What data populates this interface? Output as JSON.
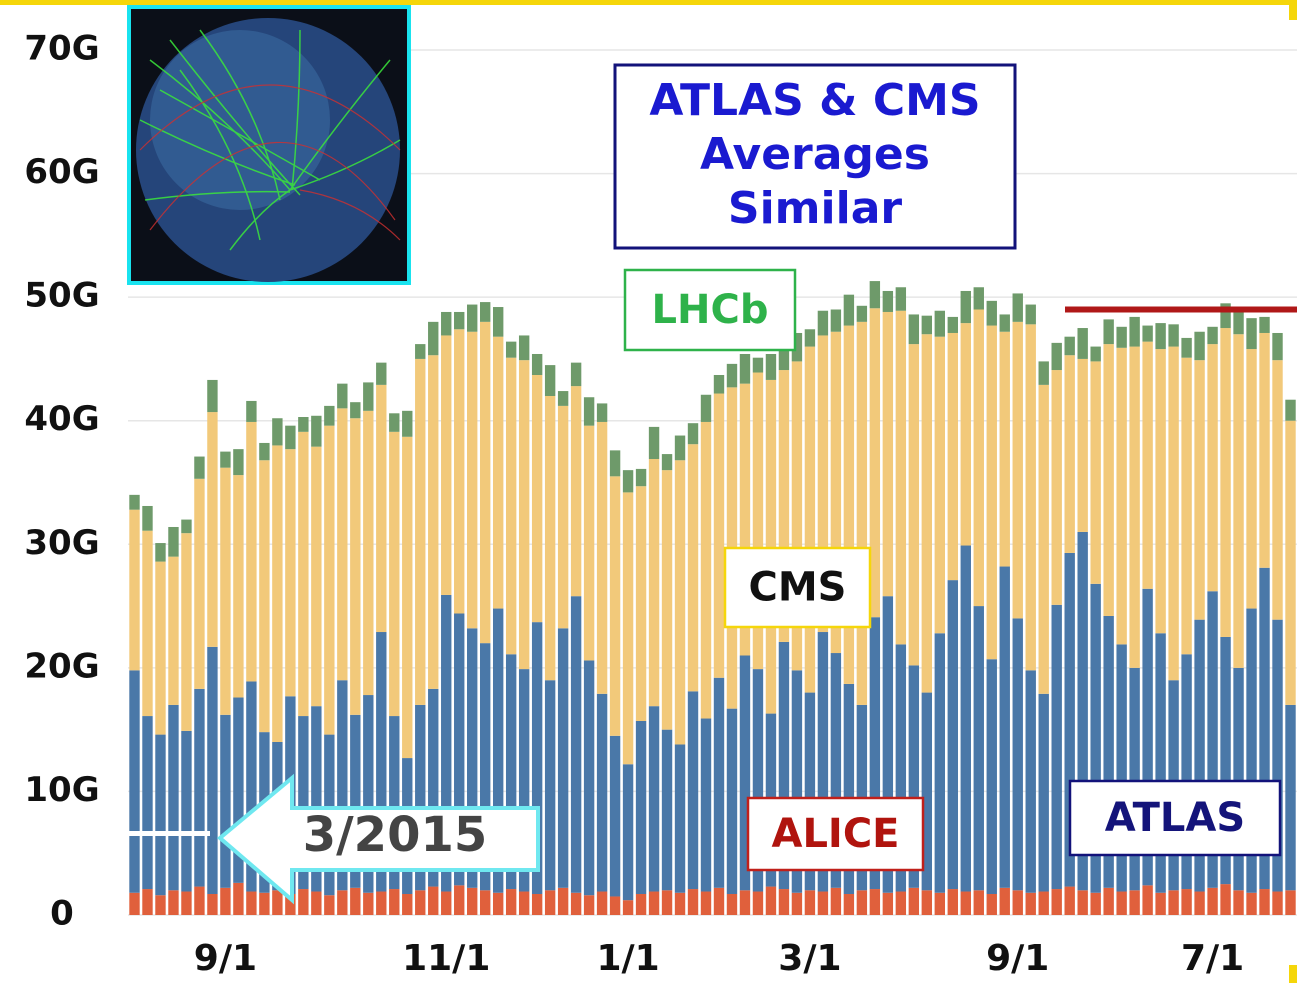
{
  "chart_data": {
    "type": "stacked_bar",
    "title_lines": [
      "ATLAS & CMS",
      "Averages",
      "Similar"
    ],
    "annotation": "3/2015",
    "categories": [
      null,
      null,
      null,
      null,
      null,
      null,
      null,
      "9/1",
      null,
      null,
      null,
      null,
      null,
      null,
      null,
      null,
      null,
      null,
      null,
      null,
      null,
      null,
      null,
      null,
      "11/1",
      null,
      null,
      null,
      null,
      null,
      null,
      null,
      null,
      null,
      null,
      null,
      null,
      null,
      "1/1",
      null,
      null,
      null,
      null,
      null,
      null,
      null,
      null,
      null,
      null,
      null,
      null,
      null,
      "3/1",
      null,
      null,
      null,
      null,
      null,
      null,
      null,
      null,
      null,
      null,
      null,
      null,
      null,
      null,
      null,
      "9/1",
      null,
      null,
      null,
      null,
      null,
      null,
      null,
      null,
      null,
      null,
      null,
      null,
      null,
      null,
      "7/1",
      null,
      null,
      null,
      null,
      null,
      null
    ],
    "series": [
      {
        "name": "ALICE",
        "color": "#e0603c",
        "values": [
          1.8,
          2.1,
          1.6,
          2.0,
          1.9,
          2.3,
          1.7,
          2.2,
          2.6,
          1.9,
          1.8,
          2.0,
          1.7,
          2.1,
          1.9,
          1.6,
          2.0,
          2.2,
          1.8,
          1.9,
          2.1,
          1.7,
          2.0,
          2.3,
          1.9,
          2.4,
          2.2,
          2.0,
          1.8,
          2.1,
          1.9,
          1.7,
          2.0,
          2.2,
          1.8,
          1.6,
          1.9,
          1.5,
          1.2,
          1.7,
          1.9,
          2.0,
          1.8,
          2.1,
          1.9,
          2.2,
          1.7,
          2.0,
          1.9,
          2.3,
          2.1,
          1.8,
          2.0,
          1.9,
          2.2,
          1.7,
          2.0,
          2.1,
          1.8,
          1.9,
          2.2,
          2.0,
          1.8,
          2.1,
          1.9,
          2.0,
          1.7,
          2.2,
          2.0,
          1.8,
          1.9,
          2.1,
          2.3,
          2.0,
          1.8,
          2.2,
          1.9,
          2.0,
          2.4,
          1.8,
          2.0,
          2.1,
          1.9,
          2.2,
          2.5,
          2.0,
          1.8,
          2.1,
          1.9,
          2.0
        ]
      },
      {
        "name": "ATLAS",
        "color": "#4a78a8",
        "values": [
          18,
          14,
          13,
          15,
          13,
          16,
          20,
          14,
          15,
          17,
          13,
          12,
          16,
          14,
          15,
          13,
          17,
          14,
          16,
          21,
          14,
          11,
          15,
          16,
          24,
          22,
          21,
          20,
          23,
          19,
          18,
          22,
          17,
          21,
          24,
          19,
          16,
          13,
          11,
          14,
          15,
          13,
          12,
          16,
          14,
          17,
          15,
          19,
          18,
          14,
          20,
          18,
          16,
          21,
          19,
          17,
          15,
          22,
          24,
          20,
          18,
          16,
          21,
          25,
          28,
          23,
          19,
          26,
          22,
          18,
          16,
          23,
          27,
          29,
          25,
          22,
          20,
          18,
          24,
          21,
          17,
          19,
          22,
          24,
          20,
          18,
          23,
          26,
          22,
          15
        ]
      },
      {
        "name": "CMS",
        "color": "#f2c97a",
        "values": [
          13,
          15,
          14,
          12,
          16,
          17,
          19,
          20,
          18,
          21,
          22,
          24,
          20,
          23,
          21,
          25,
          22,
          24,
          23,
          20,
          23,
          26,
          28,
          27,
          21,
          23,
          24,
          26,
          22,
          24,
          25,
          20,
          23,
          18,
          17,
          19,
          22,
          21,
          22,
          19,
          20,
          21,
          23,
          20,
          24,
          23,
          26,
          22,
          24,
          27,
          22,
          25,
          28,
          24,
          26,
          29,
          31,
          25,
          23,
          27,
          26,
          29,
          24,
          20,
          18,
          24,
          27,
          19,
          24,
          28,
          25,
          19,
          16,
          14,
          18,
          22,
          24,
          26,
          20,
          23,
          27,
          24,
          21,
          20,
          25,
          27,
          21,
          19,
          21,
          23
        ]
      },
      {
        "name": "LHCb",
        "color": "#6e9a6a",
        "values": [
          1.2,
          2.0,
          1.5,
          2.4,
          1.1,
          1.8,
          2.6,
          1.3,
          2.1,
          1.7,
          1.4,
          2.2,
          1.9,
          1.2,
          2.5,
          1.6,
          2.0,
          1.3,
          2.3,
          1.8,
          1.5,
          2.1,
          1.2,
          2.7,
          1.9,
          1.4,
          2.2,
          1.6,
          2.4,
          1.3,
          2.0,
          1.7,
          2.5,
          1.2,
          1.9,
          2.3,
          1.5,
          2.1,
          1.8,
          1.4,
          2.6,
          1.3,
          2.0,
          1.7,
          2.2,
          1.5,
          1.9,
          2.4,
          1.2,
          2.1,
          1.6,
          2.3,
          1.4,
          2.0,
          1.8,
          2.5,
          1.3,
          2.2,
          1.7,
          1.9,
          2.4,
          1.5,
          2.1,
          1.3,
          2.6,
          1.8,
          2.0,
          1.4,
          2.3,
          1.6,
          1.9,
          2.2,
          1.5,
          2.5,
          1.2,
          2.0,
          1.7,
          2.4,
          1.3,
          2.1,
          1.8,
          1.6,
          2.3,
          1.4,
          2.0,
          1.9,
          2.5,
          1.3,
          2.2,
          1.7
        ]
      }
    ],
    "ylim": [
      0,
      70
    ],
    "yticks": [
      0,
      {
        "value": 10,
        "label": "10G"
      },
      {
        "value": 20,
        "label": "20G"
      },
      {
        "value": 30,
        "label": "30G"
      },
      {
        "value": 40,
        "label": "40G"
      },
      {
        "value": 50,
        "label": "50G"
      },
      {
        "value": 60,
        "label": "60G"
      },
      {
        "value": 70,
        "label": "70G"
      }
    ],
    "grid": true,
    "average_line": {
      "value": 49,
      "color": "#b01818"
    },
    "start_marker": {
      "value": 6.6,
      "color": "#ffffff"
    }
  }
}
